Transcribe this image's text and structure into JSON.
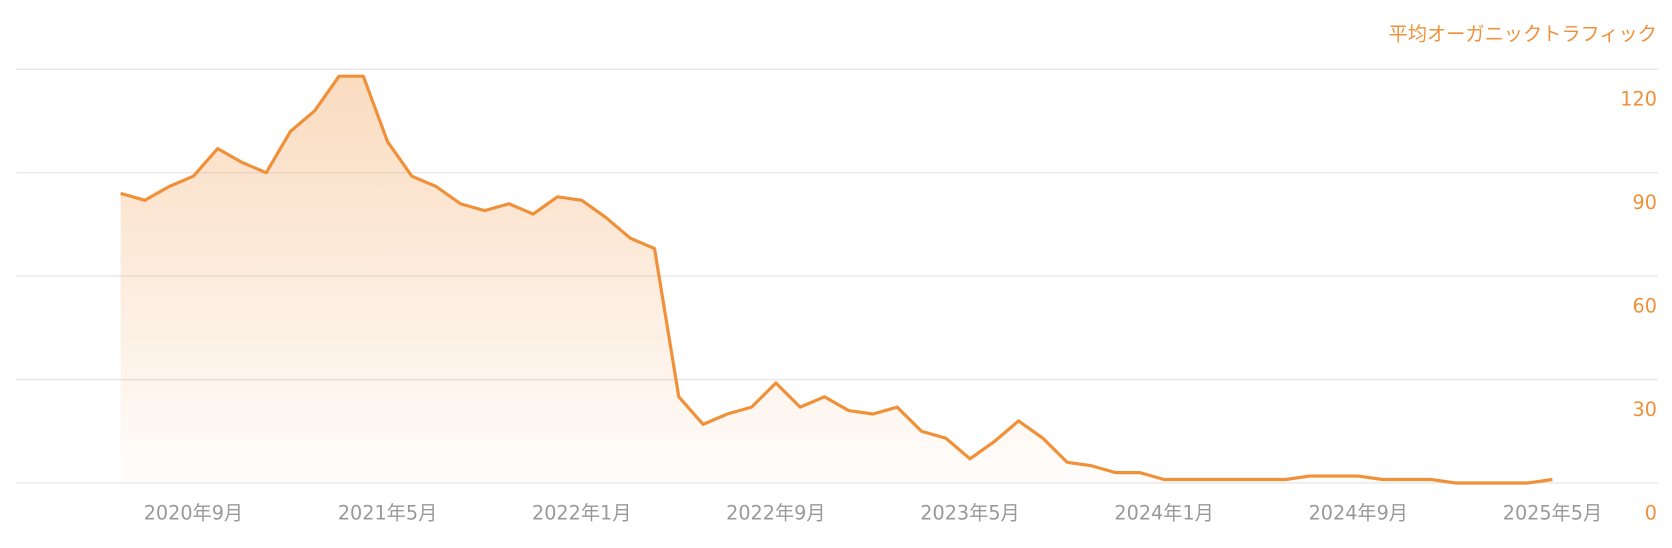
{
  "chart_data": {
    "type": "area",
    "y_label": "平均オーガニックトラフィック",
    "categories": [
      null,
      null,
      null,
      "2020年9月",
      null,
      null,
      null,
      null,
      null,
      null,
      null,
      "2021年5月",
      null,
      null,
      null,
      null,
      null,
      null,
      null,
      "2022年1月",
      null,
      null,
      null,
      null,
      null,
      null,
      null,
      "2022年9月",
      null,
      null,
      null,
      null,
      null,
      null,
      null,
      "2023年5月",
      null,
      null,
      null,
      null,
      null,
      null,
      null,
      "2024年1月",
      null,
      null,
      null,
      null,
      null,
      null,
      null,
      "2024年9月",
      null,
      null,
      null,
      null,
      null,
      null,
      null,
      "2025年5月"
    ],
    "series": [
      {
        "name": "平均オーガニックトラフィック",
        "color": "#f0913a",
        "values": [
          84,
          82,
          86,
          89,
          97,
          93,
          90,
          102,
          108,
          118,
          118,
          99,
          89,
          86,
          81,
          79,
          81,
          78,
          83,
          82,
          77,
          71,
          68,
          25,
          17,
          20,
          22,
          29,
          22,
          25,
          21,
          20,
          22,
          15,
          13,
          7,
          12,
          18,
          13,
          6,
          5,
          3,
          3,
          1,
          1,
          1,
          1,
          1,
          1,
          2,
          2,
          2,
          1,
          1,
          1,
          0,
          0,
          0,
          0,
          1
        ]
      }
    ],
    "ylim": [
      0,
      120
    ],
    "yticks": [
      0,
      30,
      60,
      90,
      120
    ],
    "grid": true
  }
}
